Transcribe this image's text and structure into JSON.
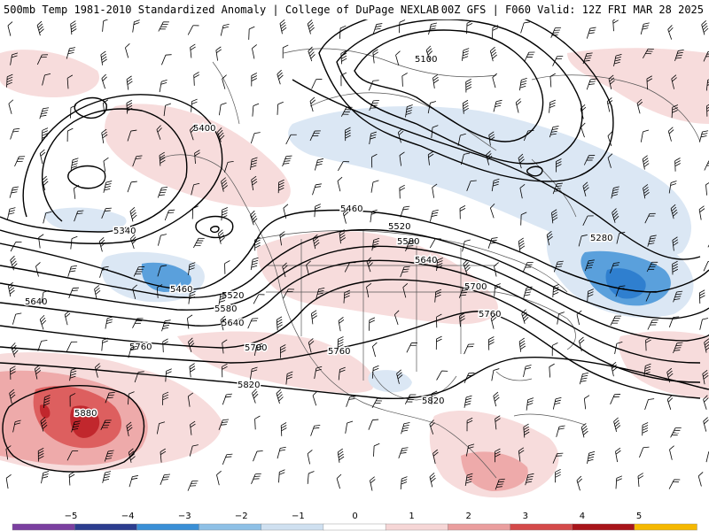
{
  "header": {
    "left_title": "500mb Temp 1981-2010 Standardized Anomaly | College of DuPage NEXLAB",
    "right_title": "00Z GFS | F060 Valid: 12Z FRI MAR 28 2025"
  },
  "colors": {
    "anom_neg_light": "#dbe7f4",
    "anom_neg_mid": "#b7d2ec",
    "anom_neg_strong": "#5aa0dc",
    "anom_neg_deep": "#2f7fcf",
    "anom_pos_light": "#f7dcdc",
    "anom_pos_mid": "#eeaaaa",
    "anom_pos_strong": "#dd5f5f",
    "anom_pos_deep": "#c1272d",
    "contour": "#000000",
    "borders": "#4d4d4d"
  },
  "legend": {
    "ticks": [
      "−5",
      "−4",
      "−3",
      "−2",
      "−1",
      "0",
      "1",
      "2",
      "3",
      "4",
      "5"
    ],
    "colors": [
      "#7b3fa0",
      "#2c3d8f",
      "#3a8fd6",
      "#8ec0e6",
      "#cfe0f0",
      "#ffffff",
      "#f6d6d6",
      "#ea9e9e",
      "#d44a4a",
      "#a8141a",
      "#f5b800"
    ]
  },
  "contour_labels": [
    {
      "text": "5100"
    },
    {
      "text": "5400"
    },
    {
      "text": "5340"
    },
    {
      "text": "5460"
    },
    {
      "text": "5460"
    },
    {
      "text": "5520"
    },
    {
      "text": "5520"
    },
    {
      "text": "5580"
    },
    {
      "text": "5580"
    },
    {
      "text": "5640"
    },
    {
      "text": "5640"
    },
    {
      "text": "5640"
    },
    {
      "text": "5700"
    },
    {
      "text": "5700"
    },
    {
      "text": "5760"
    },
    {
      "text": "5760"
    },
    {
      "text": "5760"
    },
    {
      "text": "5820"
    },
    {
      "text": "5820"
    },
    {
      "text": "5880"
    },
    {
      "text": "5280"
    }
  ]
}
